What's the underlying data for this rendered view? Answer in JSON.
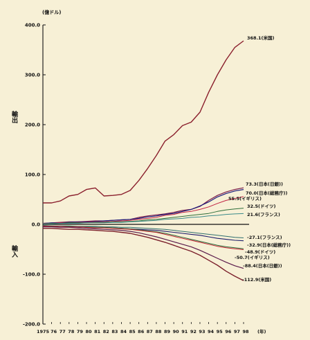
{
  "chart_data": {
    "type": "line",
    "unit_label": "(億ドル)",
    "side_label_top": "輸出",
    "side_label_bottom": "輸入",
    "x_suffix": "(年)",
    "x": [
      1975,
      1976,
      1977,
      1978,
      1979,
      1980,
      1981,
      1982,
      1983,
      1984,
      1985,
      1986,
      1987,
      1988,
      1989,
      1990,
      1991,
      1992,
      1993,
      1994,
      1995,
      1996,
      1997,
      1998
    ],
    "x_tick_labels": [
      "1975",
      "76",
      "77",
      "78",
      "79",
      "80",
      "81",
      "82",
      "83",
      "84",
      "85",
      "86",
      "87",
      "88",
      "89",
      "90",
      "91",
      "92",
      "93",
      "94",
      "95",
      "96",
      "97",
      "98"
    ],
    "ylim": [
      -200,
      400
    ],
    "y_ticks": [
      400,
      300,
      200,
      100,
      0,
      -100,
      -200
    ],
    "y_tick_labels": [
      "400.0",
      "300.0",
      "200.0",
      "100.0",
      "0.0",
      "-100.0",
      "-200.0"
    ],
    "series": [
      {
        "name": "368.1(米国)",
        "color": "#8a1e2c",
        "width": 1.4,
        "values": [
          43,
          43,
          47,
          57,
          60,
          70,
          73,
          57,
          58,
          60,
          68,
          88,
          112,
          138,
          167,
          180,
          198,
          205,
          225,
          265,
          300,
          330,
          355,
          368.1
        ]
      },
      {
        "name": "73.3(日本(日銀))",
        "color": "#7a1a48",
        "width": 1.2,
        "values": [
          2,
          3,
          4,
          5,
          5,
          6,
          7,
          7,
          8,
          9,
          10,
          14,
          17,
          19,
          21,
          24,
          28,
          30,
          36,
          48,
          58,
          65,
          70,
          73.3
        ]
      },
      {
        "name": "70.0(日本(総務庁))",
        "color": "#1a1a7a",
        "width": 1.2,
        "values": [
          2,
          3,
          3,
          4,
          5,
          5,
          6,
          7,
          8,
          9,
          10,
          12,
          15,
          17,
          20,
          22,
          26,
          30,
          37,
          45,
          55,
          62,
          67,
          70.0
        ]
      },
      {
        "name": "55.5(イギリス)",
        "color": "#c02040",
        "width": 1.0,
        "values": [
          2,
          2,
          3,
          3,
          4,
          4,
          5,
          5,
          6,
          7,
          8,
          10,
          12,
          14,
          18,
          20,
          24,
          26,
          30,
          35,
          42,
          48,
          52,
          55.5
        ]
      },
      {
        "name": "32.5(ドイツ)",
        "color": "#2e6e3a",
        "width": 1.0,
        "values": [
          1,
          2,
          2,
          3,
          3,
          3,
          4,
          4,
          5,
          5,
          6,
          7,
          9,
          10,
          12,
          14,
          16,
          18,
          20,
          22,
          26,
          29,
          31,
          32.5
        ]
      },
      {
        "name": "21.6(フランス)",
        "color": "#3a8a8a",
        "width": 1.0,
        "values": [
          1,
          1,
          2,
          2,
          2,
          3,
          3,
          3,
          4,
          4,
          5,
          6,
          7,
          8,
          10,
          11,
          12,
          14,
          15,
          17,
          18,
          20,
          21,
          21.6
        ]
      },
      {
        "name": "-27.1(フランス)",
        "color": "#2e6e6e",
        "width": 1.0,
        "values": [
          -2,
          -3,
          -3,
          -3,
          -4,
          -4,
          -4,
          -5,
          -5,
          -6,
          -6,
          -7,
          -8,
          -9,
          -10,
          -12,
          -14,
          -16,
          -18,
          -20,
          -22,
          -24,
          -26,
          -27.1
        ]
      },
      {
        "name": "-32.9(日本(総務庁))",
        "color": "#1a1a6a",
        "width": 1.1,
        "values": [
          -4,
          -4,
          -4,
          -5,
          -5,
          -6,
          -6,
          -7,
          -7,
          -8,
          -9,
          -10,
          -11,
          -12,
          -14,
          -16,
          -18,
          -20,
          -22,
          -25,
          -28,
          -30,
          -32,
          -32.9
        ]
      },
      {
        "name": "-48.9(ドイツ)",
        "color": "#2a6a3a",
        "width": 1.0,
        "values": [
          -3,
          -3,
          -4,
          -4,
          -5,
          -5,
          -6,
          -6,
          -7,
          -8,
          -9,
          -11,
          -13,
          -15,
          -18,
          -22,
          -26,
          -30,
          -34,
          -38,
          -42,
          -45,
          -47,
          -48.9
        ]
      },
      {
        "name": "-50.7(イギリス)",
        "color": "#c02030",
        "width": 1.0,
        "values": [
          -3,
          -4,
          -4,
          -5,
          -5,
          -6,
          -7,
          -7,
          -8,
          -9,
          -10,
          -12,
          -14,
          -16,
          -20,
          -24,
          -28,
          -32,
          -36,
          -40,
          -44,
          -47,
          -49,
          -50.7
        ]
      },
      {
        "name": "-88.4(日本(日銀))",
        "color": "#5a1a4a",
        "width": 1.2,
        "values": [
          -5,
          -5,
          -6,
          -6,
          -7,
          -8,
          -9,
          -10,
          -11,
          -12,
          -14,
          -17,
          -21,
          -25,
          -30,
          -35,
          -40,
          -45,
          -52,
          -60,
          -68,
          -76,
          -83,
          -88.4
        ]
      },
      {
        "name": "-112.9(米国)",
        "color": "#7a1e2a",
        "width": 1.4,
        "values": [
          -8,
          -8,
          -9,
          -10,
          -10,
          -11,
          -12,
          -13,
          -14,
          -16,
          -18,
          -22,
          -26,
          -31,
          -36,
          -42,
          -48,
          -54,
          -62,
          -72,
          -82,
          -94,
          -104,
          -112.9
        ]
      }
    ]
  }
}
